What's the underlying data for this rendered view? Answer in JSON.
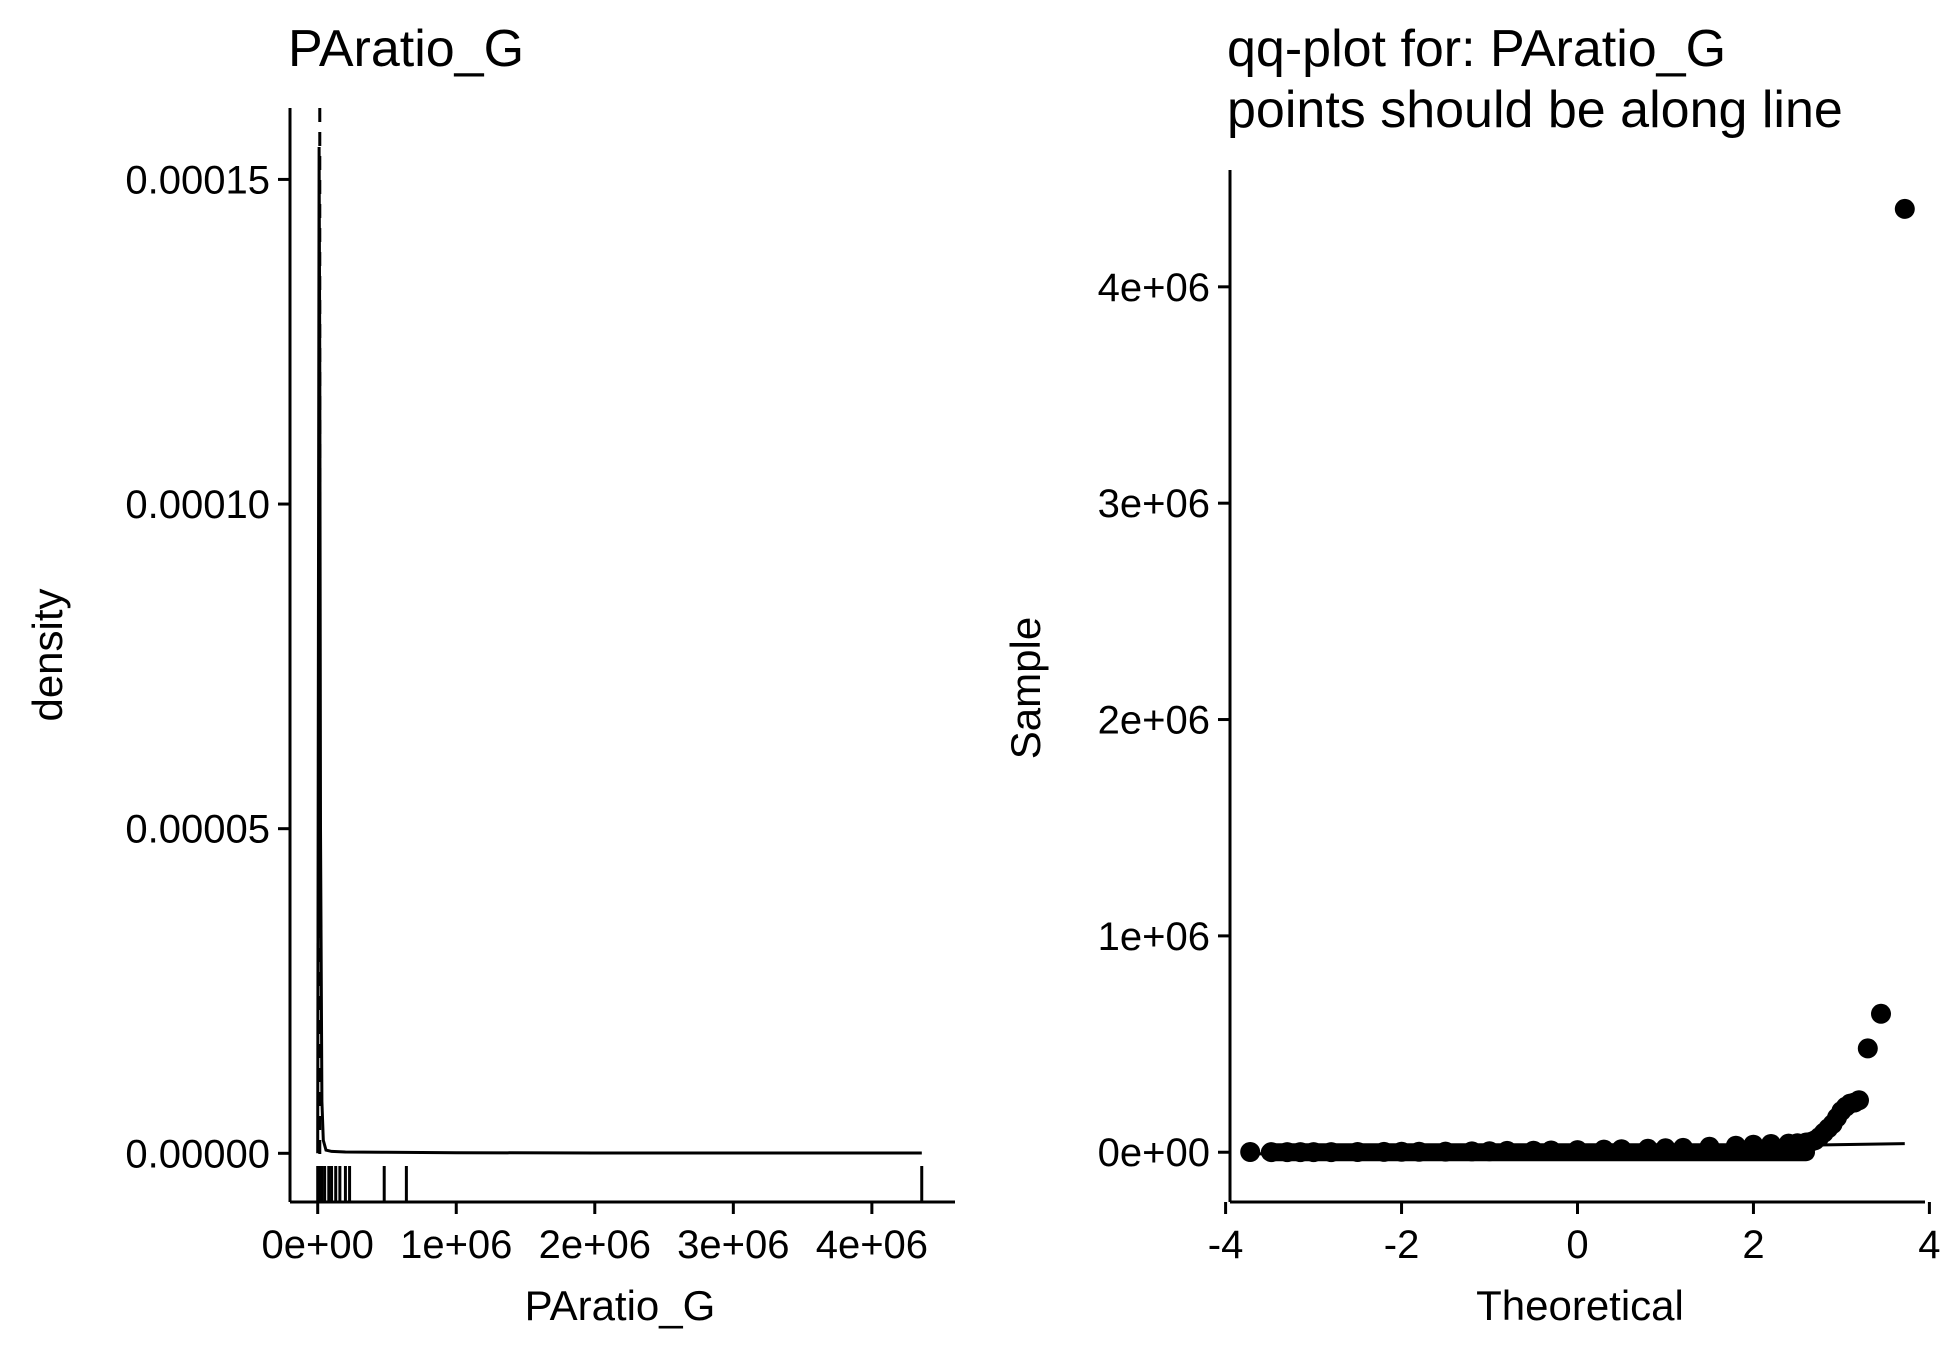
{
  "chart_data": [
    {
      "type": "density",
      "title": "PAratio_G",
      "xlabel": "PAratio_G",
      "ylabel": "density",
      "xlim": [
        -200000,
        4600000
      ],
      "ylim": [
        -7.5e-06,
        0.000161
      ],
      "x_ticks": [
        0,
        1000000,
        2000000,
        3000000,
        4000000
      ],
      "x_tick_labels": [
        "0e+00",
        "1e+06",
        "2e+06",
        "3e+06",
        "4e+06"
      ],
      "y_ticks": [
        0,
        5e-05,
        0.0001,
        0.00015
      ],
      "y_tick_labels": [
        "0.00000",
        "0.00005",
        "0.00010",
        "0.00015"
      ],
      "grid": false,
      "mean_line": {
        "style": "dashed",
        "x": 15000
      },
      "density_curve": {
        "x": [
          0,
          5000,
          10000,
          15000,
          20000,
          30000,
          40000,
          60000,
          100000,
          200000,
          500000,
          1000000,
          2000000,
          3000000,
          4000000,
          4360000
        ],
        "y": [
          0.0,
          8e-05,
          0.000155,
          0.00012,
          5e-05,
          8e-06,
          2e-06,
          5e-07,
          3e-07,
          2e-07,
          1.5e-07,
          1e-07,
          5e-08,
          5e-08,
          5e-08,
          5e-08
        ]
      },
      "rug": [
        0,
        5000,
        10000,
        20000,
        30000,
        50000,
        80000,
        100000,
        130000,
        160000,
        200000,
        230000,
        480000,
        640000,
        4360000
      ]
    },
    {
      "type": "scatter",
      "title": "qq-plot for: PAratio_G\npoints should be along line",
      "title_lines": [
        "qq-plot for: PAratio_G",
        "points should be along line"
      ],
      "xlabel": "Theoretical",
      "ylabel": "Sample",
      "xlim": [
        -3.95,
        3.95
      ],
      "ylim": [
        -230000,
        4540000
      ],
      "x_ticks": [
        -4,
        -2,
        0,
        2,
        4
      ],
      "x_tick_labels": [
        "-4",
        "-2",
        "0",
        "2",
        "4"
      ],
      "y_ticks": [
        0,
        1000000,
        2000000,
        3000000,
        4000000
      ],
      "y_tick_labels": [
        "0e+00",
        "1e+06",
        "2e+06",
        "3e+06",
        "4e+06"
      ],
      "grid": false,
      "reference_line": {
        "x": [
          -3.72,
          3.72
        ],
        "y": [
          -8000,
          40000
        ]
      },
      "points": {
        "x": [
          -3.72,
          -3.48,
          -3.3,
          -3.15,
          -3.0,
          -2.8,
          -2.5,
          -2.2,
          -2.0,
          -1.8,
          -1.5,
          -1.2,
          -1.0,
          -0.8,
          -0.5,
          -0.3,
          0.0,
          0.3,
          0.5,
          0.8,
          1.0,
          1.2,
          1.5,
          1.8,
          2.0,
          2.2,
          2.4,
          2.5,
          2.6,
          2.65,
          2.7,
          2.75,
          2.8,
          2.85,
          2.9,
          2.95,
          3.0,
          3.05,
          3.1,
          3.15,
          3.2,
          3.3,
          3.45,
          3.72
        ],
        "y": [
          1000,
          500,
          500,
          600,
          700,
          800,
          1000,
          1500,
          2000,
          2500,
          3000,
          4000,
          5000,
          6000,
          7000,
          8000,
          10000,
          12000,
          14000,
          16000,
          18000,
          20000,
          25000,
          30000,
          35000,
          38000,
          40000,
          42000,
          45000,
          48000,
          55000,
          70000,
          90000,
          110000,
          130000,
          160000,
          190000,
          210000,
          225000,
          230000,
          240000,
          480000,
          640000,
          4360000
        ]
      }
    }
  ]
}
